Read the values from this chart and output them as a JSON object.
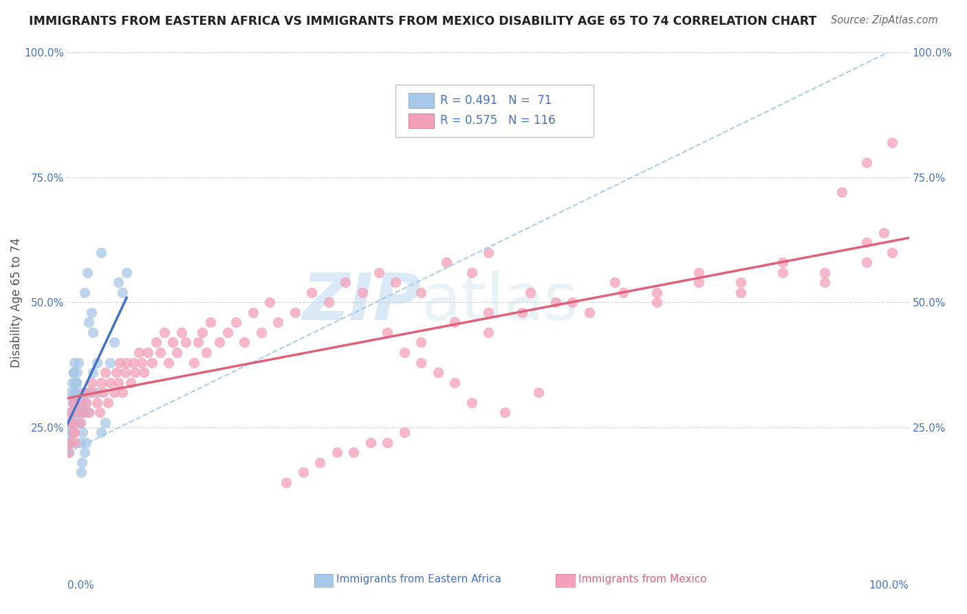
{
  "title": "IMMIGRANTS FROM EASTERN AFRICA VS IMMIGRANTS FROM MEXICO DISABILITY AGE 65 TO 74 CORRELATION CHART",
  "source": "Source: ZipAtlas.com",
  "ylabel": "Disability Age 65 to 74",
  "xlim": [
    0,
    1.0
  ],
  "ylim": [
    0,
    1.0
  ],
  "xticks": [
    0.0,
    0.25,
    0.5,
    0.75,
    1.0
  ],
  "xticklabels": [
    "0.0%",
    "",
    "",
    "",
    "100.0%"
  ],
  "yticks": [
    0.0,
    0.25,
    0.5,
    0.75,
    1.0
  ],
  "yticklabels": [
    "",
    "25.0%",
    "50.0%",
    "75.0%",
    "100.0%"
  ],
  "r_eastern": 0.491,
  "n_eastern": 71,
  "r_mexico": 0.575,
  "n_mexico": 116,
  "eastern_color": "#a8c8e8",
  "eastern_line_color": "#4472c4",
  "mexico_color": "#f4a0b8",
  "mexico_line_color": "#e0607a",
  "dashed_line_color": "#a0c8e8",
  "legend_label_eastern": "Immigrants from Eastern Africa",
  "legend_label_mexico": "Immigrants from Mexico",
  "title_color": "#222222",
  "source_color": "#666666",
  "tick_color": "#4472c4",
  "grid_color": "#d0d0d0",
  "watermark_color": "#c8dff0",
  "legend_edge_color": "#c0c0c0",
  "eastern_points_x": [
    0.002,
    0.004,
    0.003,
    0.005,
    0.001,
    0.006,
    0.002,
    0.004,
    0.007,
    0.003,
    0.005,
    0.008,
    0.002,
    0.006,
    0.004,
    0.009,
    0.003,
    0.007,
    0.005,
    0.01,
    0.004,
    0.008,
    0.006,
    0.012,
    0.005,
    0.009,
    0.007,
    0.015,
    0.006,
    0.01,
    0.008,
    0.018,
    0.007,
    0.012,
    0.009,
    0.02,
    0.008,
    0.014,
    0.011,
    0.025,
    0.01,
    0.016,
    0.013,
    0.03,
    0.012,
    0.018,
    0.015,
    0.035,
    0.014,
    0.02,
    0.017,
    0.04,
    0.016,
    0.022,
    0.019,
    0.045,
    0.018,
    0.025,
    0.021,
    0.05,
    0.02,
    0.028,
    0.023,
    0.055,
    0.025,
    0.03,
    0.035,
    0.06,
    0.04,
    0.065,
    0.07
  ],
  "eastern_points_y": [
    0.22,
    0.26,
    0.28,
    0.24,
    0.2,
    0.3,
    0.25,
    0.22,
    0.28,
    0.26,
    0.24,
    0.3,
    0.22,
    0.28,
    0.32,
    0.26,
    0.24,
    0.3,
    0.28,
    0.34,
    0.26,
    0.32,
    0.3,
    0.28,
    0.34,
    0.32,
    0.36,
    0.3,
    0.28,
    0.34,
    0.32,
    0.3,
    0.36,
    0.28,
    0.34,
    0.32,
    0.38,
    0.3,
    0.36,
    0.28,
    0.34,
    0.32,
    0.38,
    0.36,
    0.3,
    0.28,
    0.22,
    0.32,
    0.26,
    0.2,
    0.18,
    0.24,
    0.16,
    0.22,
    0.28,
    0.26,
    0.24,
    0.32,
    0.3,
    0.38,
    0.52,
    0.48,
    0.56,
    0.42,
    0.46,
    0.44,
    0.38,
    0.54,
    0.6,
    0.52,
    0.56
  ],
  "mexico_points_x": [
    0.001,
    0.003,
    0.005,
    0.007,
    0.009,
    0.002,
    0.004,
    0.006,
    0.008,
    0.01,
    0.012,
    0.015,
    0.018,
    0.02,
    0.022,
    0.025,
    0.028,
    0.03,
    0.035,
    0.038,
    0.04,
    0.042,
    0.045,
    0.048,
    0.05,
    0.055,
    0.058,
    0.06,
    0.062,
    0.065,
    0.068,
    0.07,
    0.075,
    0.078,
    0.08,
    0.085,
    0.088,
    0.09,
    0.095,
    0.1,
    0.105,
    0.11,
    0.115,
    0.12,
    0.125,
    0.13,
    0.135,
    0.14,
    0.15,
    0.155,
    0.16,
    0.165,
    0.17,
    0.18,
    0.19,
    0.2,
    0.21,
    0.22,
    0.23,
    0.24,
    0.25,
    0.27,
    0.29,
    0.31,
    0.33,
    0.35,
    0.37,
    0.39,
    0.42,
    0.45,
    0.48,
    0.5,
    0.38,
    0.42,
    0.46,
    0.5,
    0.54,
    0.58,
    0.62,
    0.66,
    0.7,
    0.75,
    0.8,
    0.85,
    0.9,
    0.95,
    0.48,
    0.52,
    0.56,
    0.38,
    0.4,
    0.34,
    0.36,
    0.3,
    0.32,
    0.28,
    0.26,
    0.44,
    0.46,
    0.42,
    0.4,
    0.5,
    0.55,
    0.6,
    0.65,
    0.7,
    0.75,
    0.8,
    0.85,
    0.9,
    0.95,
    0.97,
    0.98,
    0.98,
    0.95,
    0.92
  ],
  "mexico_points_y": [
    0.2,
    0.22,
    0.26,
    0.24,
    0.22,
    0.28,
    0.26,
    0.3,
    0.24,
    0.28,
    0.3,
    0.26,
    0.28,
    0.32,
    0.3,
    0.28,
    0.34,
    0.32,
    0.3,
    0.28,
    0.34,
    0.32,
    0.36,
    0.3,
    0.34,
    0.32,
    0.36,
    0.34,
    0.38,
    0.32,
    0.36,
    0.38,
    0.34,
    0.38,
    0.36,
    0.4,
    0.38,
    0.36,
    0.4,
    0.38,
    0.42,
    0.4,
    0.44,
    0.38,
    0.42,
    0.4,
    0.44,
    0.42,
    0.38,
    0.42,
    0.44,
    0.4,
    0.46,
    0.42,
    0.44,
    0.46,
    0.42,
    0.48,
    0.44,
    0.5,
    0.46,
    0.48,
    0.52,
    0.5,
    0.54,
    0.52,
    0.56,
    0.54,
    0.52,
    0.58,
    0.56,
    0.6,
    0.44,
    0.42,
    0.46,
    0.44,
    0.48,
    0.5,
    0.48,
    0.52,
    0.5,
    0.54,
    0.52,
    0.56,
    0.54,
    0.58,
    0.3,
    0.28,
    0.32,
    0.22,
    0.24,
    0.2,
    0.22,
    0.18,
    0.2,
    0.16,
    0.14,
    0.36,
    0.34,
    0.38,
    0.4,
    0.48,
    0.52,
    0.5,
    0.54,
    0.52,
    0.56,
    0.54,
    0.58,
    0.56,
    0.62,
    0.64,
    0.6,
    0.82,
    0.78,
    0.72
  ]
}
